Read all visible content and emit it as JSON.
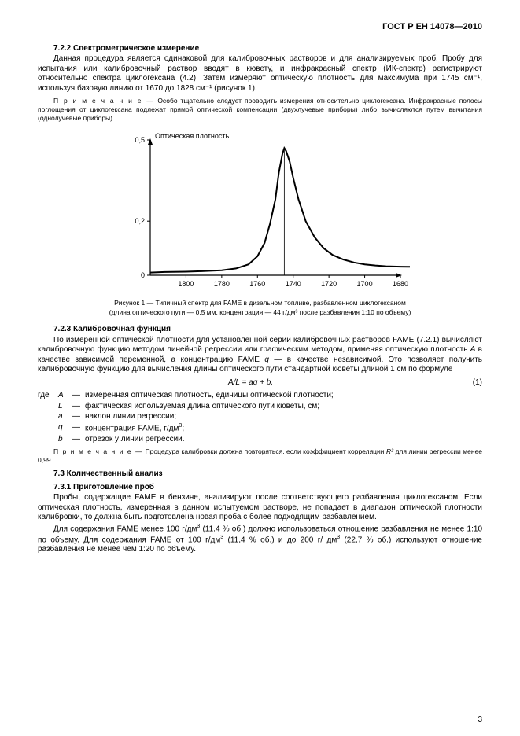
{
  "header": "ГОСТ Р ЕН 14078—2010",
  "s722_title": "7.2.2  Спектрометрическое измерение",
  "s722_p1": "Данная процедура является одинаковой для калибровочных растворов и для анализируемых проб. Пробу для испытания или калибровочный раствор вводят в кювету, и инфракрасный спектр (ИК-спектр) регистрируют относительно спектра циклогексана (4.2). Затем измеряют оптическую плотность для мак­симума при 1745 см⁻¹, используя базовую линию от 1670 до 1828 см⁻¹ (рисунок 1).",
  "s722_note": "Особо тщательно следует проводить измерения относительно циклогексана. Инфра­красные полосы поглощения от циклогексана подлежат прямой оптической компенсации (двухлучевые приборы) либо вычисляются путем вычитания (однолучевые приборы).",
  "note_label": "П р и м е ч а н и е —",
  "chart": {
    "type": "line",
    "ylabel": "Оптическая плотность",
    "ylim": [
      0,
      0.5
    ],
    "yticks": [
      0,
      0.2,
      0.5
    ],
    "xlim": [
      1680,
      1820
    ],
    "xticks": [
      1800,
      1780,
      1760,
      1740,
      1720,
      1700,
      1680
    ],
    "peak_x": 1745,
    "line_color": "#000000",
    "background": "#ffffff",
    "points_x": [
      1820,
      1812,
      1800,
      1790,
      1780,
      1772,
      1765,
      1760,
      1756,
      1753,
      1750,
      1748,
      1746,
      1745,
      1744,
      1742,
      1740,
      1737,
      1733,
      1728,
      1723,
      1718,
      1712,
      1706,
      1700,
      1694,
      1688,
      1682,
      1676,
      1670
    ],
    "points_y": [
      0.01,
      0.012,
      0.013,
      0.015,
      0.018,
      0.025,
      0.04,
      0.07,
      0.12,
      0.19,
      0.28,
      0.38,
      0.45,
      0.47,
      0.46,
      0.42,
      0.36,
      0.28,
      0.2,
      0.14,
      0.1,
      0.075,
      0.058,
      0.047,
      0.04,
      0.036,
      0.033,
      0.032,
      0.031,
      0.031
    ]
  },
  "caption_line1": "Рисунок 1 — Типичный спектр для FAME в дизельном топливе, разбавленном циклогексаном",
  "caption_line2": "(длина оптического пути — 0,5 мм, концентрация — 44 г/дм³ после разбавления 1:10 по объему)",
  "s723_title": "7.2.3  Калибровочная функция",
  "s723_p1_a": "По измеренной оптической плотности для установленной серии калибровочных растворов FAME (7.2.1) вычисляют калибровочную функцию методом линейной регрессии или графическим методом, применяя оптическую плотность ",
  "s723_p1_A": "A",
  "s723_p1_b": " в качестве зависимой переменной, а концентрацию FAME ",
  "s723_p1_q": "q",
  "s723_p1_c": " — в качестве независимой. Это позволяет получить калибровочную функцию для вычисления длины опти­ческого пути стандартной кюветы длиной 1 см по формуле",
  "formula": "A/L = aq + b,",
  "formula_num": "(1)",
  "def_where": "где ",
  "defs": [
    {
      "sym": "A",
      "txt": "измеренная оптическая плотность, единицы оптической плотности;"
    },
    {
      "sym": "L",
      "txt": "фактическая используемая длина оптического пути кюветы, см;"
    },
    {
      "sym": "a",
      "txt": "наклон линии регрессии;"
    },
    {
      "sym": "q",
      "txt_html": "концентрация FAME, г/дм<sup>3</sup>;"
    },
    {
      "sym": "b",
      "txt": "отрезок у линии регрессии."
    }
  ],
  "s723_note_a": "Процедура калибровки должна повторяться, если коэффициент корреляции ",
  "s723_note_R2": "R²",
  "s723_note_b": " для ли­нии регрессии менее 0,99.",
  "s73_title": "7.3   Количественный анализ",
  "s731_title": "7.3.1  Приготовление проб",
  "s731_p1": "Пробы, содержащие FAME в бензине, анализируют после соответствующего разбавления цикло­гексаном. Если оптическая плотность, измеренная в данном испытуемом растворе, не попадает в диапа­зон оптической плотности калибровки, то должна быть подготовлена новая проба с более подходящим разбавлением.",
  "s731_p2_html": "Для содержания FAME менее 100 г/дм<sup>3</sup> (11.4 % об.) должно использоваться отношение разбавле­ния не менее 1:10 по объему. Для содержания FAME от 100 г/дм<sup>3</sup> (11,4 % об.) и до 200 г/ дм<sup>3</sup> (22,7 % об.) используют отношение разбавления не менее чем 1:20 по объему.",
  "pagenum": "3"
}
